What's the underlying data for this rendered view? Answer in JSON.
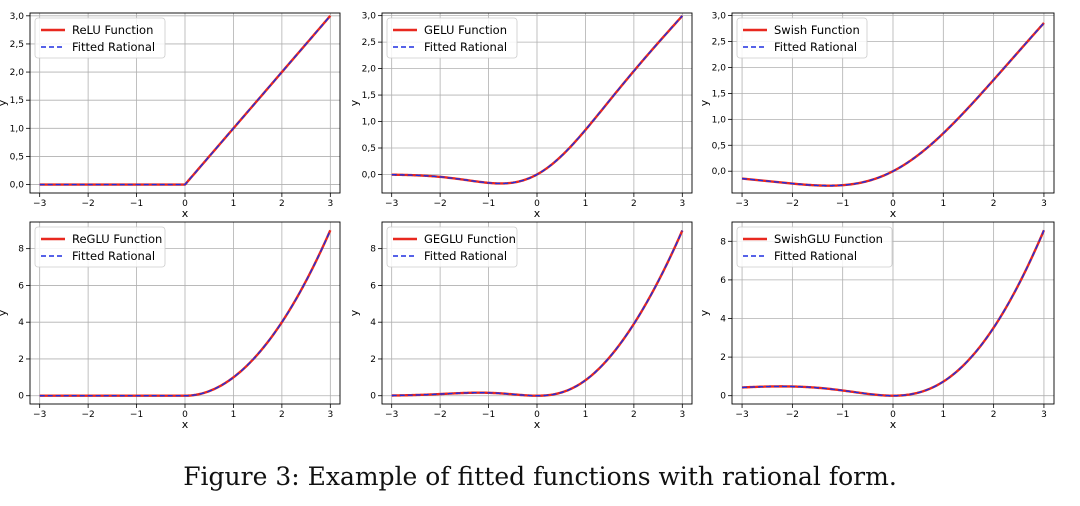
{
  "caption": "Figure 3: Example of fitted functions with rational form.",
  "colors": {
    "function": "#e8281f",
    "rational": "#1f2fe0",
    "grid": "#b0b0b0"
  },
  "chart_data": [
    {
      "type": "line",
      "fn": "relu",
      "xlabel": "x",
      "ylabel": "y",
      "xlim": [
        -3.2,
        3.2
      ],
      "ylim": [
        -0.15,
        3.05
      ],
      "xticks": [
        -3,
        -2,
        -1,
        0,
        1,
        2,
        3
      ],
      "yticks": [
        0.0,
        0.5,
        1.0,
        1.5,
        2.0,
        2.5,
        3.0
      ],
      "ytick_labels": [
        "0,0",
        "0,5",
        "1,0",
        "1,5",
        "2,0",
        "2,5",
        "3,0"
      ],
      "grid": true,
      "legend_position": "top-left",
      "series": [
        {
          "name": "ReLU Function",
          "style": "solid",
          "x": [
            -3,
            -2,
            -1,
            -0.5,
            0,
            0.5,
            1,
            2,
            3
          ],
          "y": [
            0,
            0,
            0,
            0,
            0,
            0.5,
            1,
            2,
            3
          ]
        },
        {
          "name": "Fitted Rational",
          "style": "dashed",
          "x": [
            -3,
            -2,
            -1,
            -0.5,
            0,
            0.5,
            1,
            2,
            3
          ],
          "y": [
            0,
            0,
            0,
            0,
            0,
            0.5,
            1,
            2,
            3
          ]
        }
      ]
    },
    {
      "type": "line",
      "fn": "gelu",
      "xlabel": "x",
      "ylabel": "y",
      "xlim": [
        -3.2,
        3.2
      ],
      "ylim": [
        -0.35,
        3.05
      ],
      "xticks": [
        -3,
        -2,
        -1,
        0,
        1,
        2,
        3
      ],
      "yticks": [
        0.0,
        0.5,
        1.0,
        1.5,
        2.0,
        2.5,
        3.0
      ],
      "ytick_labels": [
        "0,0",
        "0,5",
        "1,0",
        "1,5",
        "2,0",
        "2,5",
        "3,0"
      ],
      "grid": true,
      "legend_position": "top-left",
      "series": [
        {
          "name": "GELU Function",
          "style": "solid",
          "x": [
            -3,
            -2,
            -1.5,
            -1,
            -0.75,
            -0.5,
            0,
            0.5,
            1,
            1.5,
            2,
            3
          ],
          "y": [
            -0.004,
            -0.045,
            -0.1,
            -0.159,
            -0.17,
            -0.154,
            0,
            0.346,
            0.841,
            1.4,
            1.955,
            2.996
          ]
        },
        {
          "name": "Fitted Rational",
          "style": "dashed",
          "x": [
            -3,
            -2,
            -1.5,
            -1,
            -0.75,
            -0.5,
            0,
            0.5,
            1,
            1.5,
            2,
            3
          ],
          "y": [
            -0.004,
            -0.045,
            -0.1,
            -0.159,
            -0.17,
            -0.154,
            0,
            0.346,
            0.841,
            1.4,
            1.955,
            2.996
          ]
        }
      ]
    },
    {
      "type": "line",
      "fn": "swish",
      "xlabel": "x",
      "ylabel": "y",
      "xlim": [
        -3.2,
        3.2
      ],
      "ylim": [
        -0.42,
        3.05
      ],
      "xticks": [
        -3,
        -2,
        -1,
        0,
        1,
        2,
        3
      ],
      "yticks": [
        0.0,
        0.5,
        1.0,
        1.5,
        2.0,
        2.5,
        3.0
      ],
      "ytick_labels": [
        "0,0",
        "0,5",
        "1,0",
        "1,5",
        "2,0",
        "2,5",
        "3,0"
      ],
      "grid": true,
      "legend_position": "top-left",
      "series": [
        {
          "name": "Swish Function",
          "style": "solid",
          "x": [
            -3,
            -2,
            -1.5,
            -1.28,
            -1,
            -0.5,
            0,
            0.5,
            1,
            2,
            3
          ],
          "y": [
            -0.142,
            -0.238,
            -0.273,
            -0.278,
            -0.269,
            -0.189,
            0,
            0.311,
            0.731,
            1.762,
            2.858
          ]
        },
        {
          "name": "Fitted Rational",
          "style": "dashed",
          "x": [
            -3,
            -2,
            -1.5,
            -1.28,
            -1,
            -0.5,
            0,
            0.5,
            1,
            2,
            3
          ],
          "y": [
            -0.142,
            -0.238,
            -0.273,
            -0.278,
            -0.269,
            -0.189,
            0,
            0.311,
            0.731,
            1.762,
            2.858
          ]
        }
      ]
    },
    {
      "type": "line",
      "fn": "reglu",
      "xlabel": "x",
      "ylabel": "y",
      "xlim": [
        -3.2,
        3.2
      ],
      "ylim": [
        -0.45,
        9.45
      ],
      "xticks": [
        -3,
        -2,
        -1,
        0,
        1,
        2,
        3
      ],
      "yticks": [
        0,
        2,
        4,
        6,
        8
      ],
      "ytick_labels": [
        "0",
        "2",
        "4",
        "6",
        "8"
      ],
      "grid": true,
      "legend_position": "top-left",
      "series": [
        {
          "name": "ReGLU Function",
          "style": "solid",
          "x": [
            -3,
            -2,
            -1,
            0,
            0.5,
            1,
            1.5,
            2,
            2.5,
            3
          ],
          "y": [
            0,
            0,
            0,
            0,
            0.25,
            1,
            2.25,
            4,
            6.25,
            9
          ]
        },
        {
          "name": "Fitted Rational",
          "style": "dashed",
          "x": [
            -3,
            -2,
            -1,
            0,
            0.5,
            1,
            1.5,
            2,
            2.5,
            3
          ],
          "y": [
            0,
            0,
            0,
            0,
            0.25,
            1,
            2.25,
            4,
            6.25,
            9
          ]
        }
      ]
    },
    {
      "type": "line",
      "fn": "geglu",
      "xlabel": "x",
      "ylabel": "y",
      "xlim": [
        -3.2,
        3.2
      ],
      "ylim": [
        -0.45,
        9.45
      ],
      "xticks": [
        -3,
        -2,
        -1,
        0,
        1,
        2,
        3
      ],
      "yticks": [
        0,
        2,
        4,
        6,
        8
      ],
      "ytick_labels": [
        "0",
        "2",
        "4",
        "6",
        "8"
      ],
      "grid": true,
      "legend_position": "top-left",
      "series": [
        {
          "name": "GEGLU Function",
          "style": "solid",
          "x": [
            -3,
            -2,
            -1.5,
            -1,
            -0.5,
            0,
            0.5,
            1,
            1.5,
            2,
            2.5,
            3
          ],
          "y": [
            0.011,
            0.091,
            0.15,
            0.159,
            0.077,
            0,
            0.173,
            0.841,
            2.1,
            3.91,
            6.2,
            8.99
          ]
        },
        {
          "name": "Fitted Rational",
          "style": "dashed",
          "x": [
            -3,
            -2,
            -1.5,
            -1,
            -0.5,
            0,
            0.5,
            1,
            1.5,
            2,
            2.5,
            3
          ],
          "y": [
            0.011,
            0.091,
            0.15,
            0.159,
            0.077,
            0,
            0.173,
            0.841,
            2.1,
            3.91,
            6.2,
            8.99
          ]
        }
      ]
    },
    {
      "type": "line",
      "fn": "swishglu",
      "xlabel": "x",
      "ylabel": "y",
      "xlim": [
        -3.2,
        3.2
      ],
      "ylim": [
        -0.43,
        9.0
      ],
      "xticks": [
        -3,
        -2,
        -1,
        0,
        1,
        2,
        3
      ],
      "yticks": [
        0,
        2,
        4,
        6,
        8
      ],
      "ytick_labels": [
        "0",
        "2",
        "4",
        "6",
        "8"
      ],
      "grid": true,
      "legend_position": "top-left",
      "series": [
        {
          "name": "SwishGLU Function",
          "style": "solid",
          "x": [
            -3,
            -2.5,
            -2,
            -1.5,
            -1,
            -0.5,
            0,
            0.5,
            1,
            1.5,
            2,
            2.5,
            3
          ],
          "y": [
            0.43,
            0.49,
            0.48,
            0.41,
            0.27,
            0.09,
            0,
            0.16,
            0.73,
            1.84,
            3.52,
            5.8,
            8.57
          ]
        },
        {
          "name": "Fitted Rational",
          "style": "dashed",
          "x": [
            -3,
            -2.5,
            -2,
            -1.5,
            -1,
            -0.5,
            0,
            0.5,
            1,
            1.5,
            2,
            2.5,
            3
          ],
          "y": [
            0.43,
            0.49,
            0.48,
            0.41,
            0.27,
            0.09,
            0,
            0.16,
            0.73,
            1.84,
            3.52,
            5.8,
            8.57
          ]
        }
      ]
    }
  ]
}
